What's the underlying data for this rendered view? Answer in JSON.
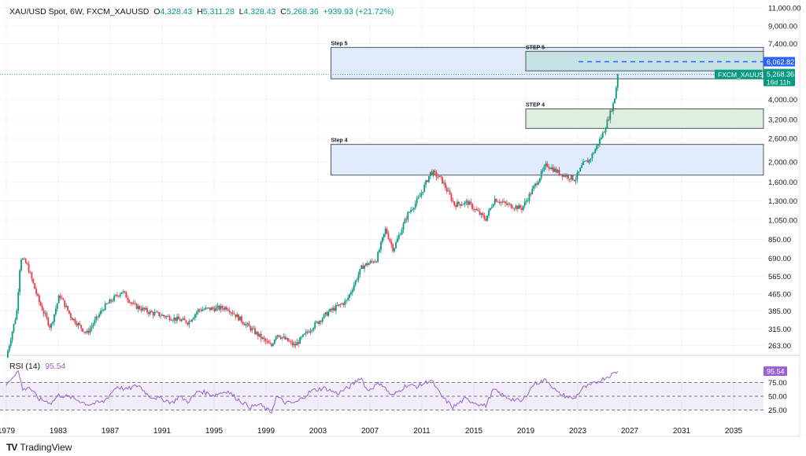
{
  "header": {
    "symbol": "XAU/USD Spot, 6W, FXCM_XAUUSD",
    "o_label": "O",
    "o": "4,328.43",
    "h_label": "H",
    "h": "5,311.28",
    "l_label": "L",
    "l": "4,328.43",
    "c_label": "C",
    "c": "5,268.36",
    "change": "+939.93 (+21.72%)"
  },
  "rsi": {
    "label": "RSI (14)",
    "value": "95.54"
  },
  "branding": {
    "name": "TradingView"
  },
  "colors": {
    "up": "#089981",
    "down": "#f23645",
    "rsi": "#9c5fcf",
    "step_blue": "#dbe8fb",
    "step_teal": "#c2e0e0",
    "step_green": "#d9ecd9",
    "target": "#2962ff"
  },
  "chart_data": {
    "type": "candlestick",
    "title": "XAU/USD Spot, 6W, FXCM_XAUUSD",
    "y_scale": "log",
    "ylim": [
      250,
      11500
    ],
    "y_ticks": [
      "11,000.00",
      "9,000.00",
      "7,400.00",
      "4,000.00",
      "3,200.00",
      "2,600.00",
      "2,000.00",
      "1,600.00",
      "1,300.00",
      "1,050.00",
      "850.00",
      "690.00",
      "565.00",
      "465.00",
      "385.00",
      "315.00",
      "263.00"
    ],
    "y_tick_values": [
      11000,
      9000,
      7400,
      4000,
      3200,
      2600,
      2000,
      1600,
      1300,
      1050,
      850,
      690,
      565,
      465,
      385,
      315,
      263
    ],
    "x_ticks": [
      "1979",
      "1983",
      "1987",
      "1991",
      "1995",
      "1999",
      "2003",
      "2007",
      "2011",
      "2015",
      "2019",
      "2023",
      "2027",
      "2031",
      "2035"
    ],
    "xlim": [
      1978.5,
      2037.3
    ],
    "price_path": [
      [
        1979.0,
        230
      ],
      [
        1979.8,
        380
      ],
      [
        1980.1,
        700
      ],
      [
        1980.6,
        640
      ],
      [
        1981.5,
        430
      ],
      [
        1982.4,
        320
      ],
      [
        1983.1,
        460
      ],
      [
        1984.0,
        360
      ],
      [
        1985.2,
        300
      ],
      [
        1986.5,
        400
      ],
      [
        1987.9,
        480
      ],
      [
        1988.8,
        410
      ],
      [
        1990.0,
        380
      ],
      [
        1991.5,
        360
      ],
      [
        1993.0,
        340
      ],
      [
        1993.8,
        390
      ],
      [
        1996.0,
        400
      ],
      [
        1997.5,
        330
      ],
      [
        1999.4,
        260
      ],
      [
        1999.8,
        300
      ],
      [
        2001.2,
        262
      ],
      [
        2002.5,
        320
      ],
      [
        2003.8,
        380
      ],
      [
        2005.2,
        430
      ],
      [
        2006.4,
        630
      ],
      [
        2007.5,
        680
      ],
      [
        2008.2,
        950
      ],
      [
        2008.8,
        760
      ],
      [
        2009.9,
        1120
      ],
      [
        2010.8,
        1350
      ],
      [
        2011.7,
        1800
      ],
      [
        2012.5,
        1650
      ],
      [
        2013.5,
        1250
      ],
      [
        2014.5,
        1280
      ],
      [
        2015.9,
        1060
      ],
      [
        2016.6,
        1330
      ],
      [
        2017.5,
        1250
      ],
      [
        2018.7,
        1200
      ],
      [
        2019.6,
        1500
      ],
      [
        2020.6,
        1950
      ],
      [
        2021.5,
        1780
      ],
      [
        2022.8,
        1650
      ],
      [
        2023.4,
        1950
      ],
      [
        2023.9,
        2050
      ],
      [
        2024.5,
        2400
      ],
      [
        2025.0,
        2800
      ],
      [
        2025.4,
        3300
      ],
      [
        2025.8,
        3900
      ],
      [
        2026.1,
        5268.36
      ]
    ],
    "current_price": 5268.36,
    "current_label": "FXCM_XAUUSD",
    "current_time": "16d 11h",
    "target_price": 6062.82,
    "target_label": "6,062.82",
    "current_price_label": "5,268.36",
    "zones": [
      {
        "label": "Step 5",
        "from": 2004.0,
        "to": 2037.3,
        "top": 7100,
        "bottom": 5020,
        "color": "blue"
      },
      {
        "label": "STEP 5",
        "from": 2019.0,
        "to": 2037.3,
        "top": 6800,
        "bottom": 5480,
        "color": "teal"
      },
      {
        "label": "STEP 4",
        "from": 2019.0,
        "to": 2037.3,
        "top": 3600,
        "bottom": 2900,
        "color": "green"
      },
      {
        "label": "Step 4",
        "from": 2004.0,
        "to": 2037.3,
        "top": 2430,
        "bottom": 1730,
        "color": "blue"
      }
    ],
    "rsi": {
      "ylim": [
        15,
        100
      ],
      "levels": [
        75,
        50,
        25
      ],
      "y_ticks": [
        "75.00",
        "50.00",
        "25.00"
      ],
      "current": 95.54,
      "path": [
        [
          1979.0,
          70
        ],
        [
          1979.3,
          80
        ],
        [
          1979.9,
          97
        ],
        [
          1980.3,
          60
        ],
        [
          1980.7,
          68
        ],
        [
          1981.5,
          45
        ],
        [
          1982.5,
          38
        ],
        [
          1983.0,
          52
        ],
        [
          1984.0,
          48
        ],
        [
          1985.3,
          35
        ],
        [
          1986.5,
          40
        ],
        [
          1987.5,
          68
        ],
        [
          1988.2,
          62
        ],
        [
          1989.2,
          70
        ],
        [
          1990.0,
          50
        ],
        [
          1991.0,
          45
        ],
        [
          1991.8,
          38
        ],
        [
          1992.3,
          50
        ],
        [
          1993.0,
          40
        ],
        [
          1993.8,
          60
        ],
        [
          1995.0,
          52
        ],
        [
          1996.0,
          60
        ],
        [
          1996.8,
          45
        ],
        [
          1997.8,
          30
        ],
        [
          1998.5,
          35
        ],
        [
          1999.4,
          20
        ],
        [
          1999.8,
          50
        ],
        [
          2000.5,
          38
        ],
        [
          2001.3,
          38
        ],
        [
          2002.5,
          60
        ],
        [
          2003.5,
          65
        ],
        [
          2004.5,
          55
        ],
        [
          2005.5,
          68
        ],
        [
          2006.3,
          85
        ],
        [
          2006.8,
          60
        ],
        [
          2007.8,
          75
        ],
        [
          2008.7,
          50
        ],
        [
          2009.8,
          70
        ],
        [
          2010.7,
          68
        ],
        [
          2011.7,
          80
        ],
        [
          2012.5,
          50
        ],
        [
          2013.4,
          30
        ],
        [
          2014.3,
          45
        ],
        [
          2015.9,
          32
        ],
        [
          2016.5,
          62
        ],
        [
          2017.5,
          48
        ],
        [
          2018.7,
          40
        ],
        [
          2019.6,
          72
        ],
        [
          2020.6,
          80
        ],
        [
          2021.5,
          55
        ],
        [
          2022.7,
          45
        ],
        [
          2023.4,
          65
        ],
        [
          2024.0,
          70
        ],
        [
          2024.8,
          80
        ],
        [
          2025.5,
          88
        ],
        [
          2026.1,
          95.54
        ]
      ]
    }
  }
}
